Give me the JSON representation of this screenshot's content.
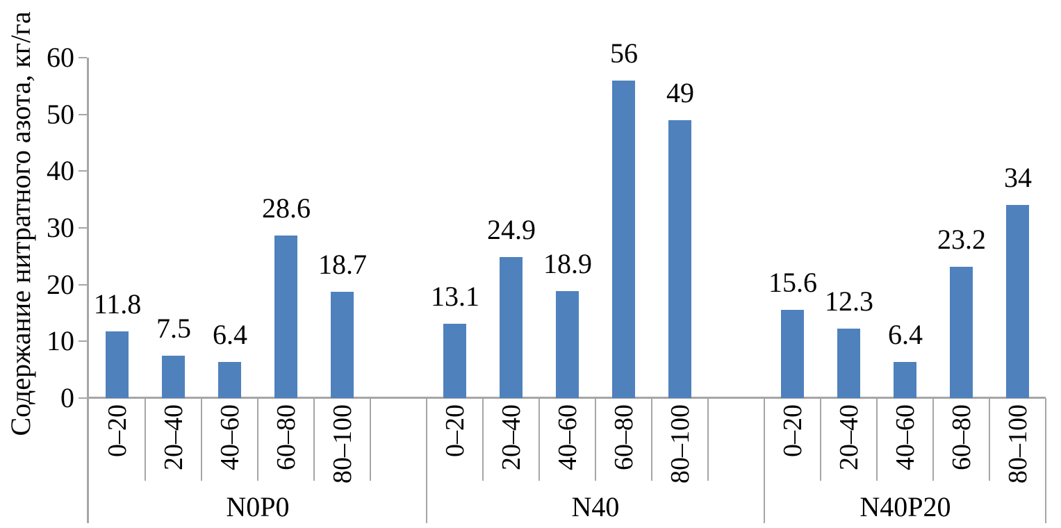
{
  "chart_data": {
    "type": "bar",
    "title": "",
    "ylabel": "Содержание нитратного азота, кг/га",
    "xlabel": "",
    "ylim": [
      0,
      60
    ],
    "yticks": [
      0,
      10,
      20,
      30,
      40,
      50,
      60
    ],
    "grid": false,
    "legend": false,
    "bar_color": "#4F81BD",
    "axis_color": "#A6A6A6",
    "text_color": "#000000",
    "categories_per_group": [
      "0–20",
      "20–40",
      "40–60",
      "60–80",
      "80–100"
    ],
    "groups": [
      {
        "label": "N0P0",
        "values": [
          11.8,
          7.5,
          6.4,
          28.6,
          18.7
        ],
        "value_labels": [
          "11.8",
          "7.5",
          "6.4",
          "28.6",
          "18.7"
        ]
      },
      {
        "label": "N40",
        "values": [
          13.1,
          24.9,
          18.9,
          56,
          49
        ],
        "value_labels": [
          "13.1",
          "24.9",
          "18.9",
          "56",
          "49"
        ]
      },
      {
        "label": "N40P20",
        "values": [
          15.6,
          12.3,
          6.4,
          23.2,
          34
        ],
        "value_labels": [
          "15.6",
          "12.3",
          "6.4",
          "23.2",
          "34"
        ]
      }
    ]
  }
}
